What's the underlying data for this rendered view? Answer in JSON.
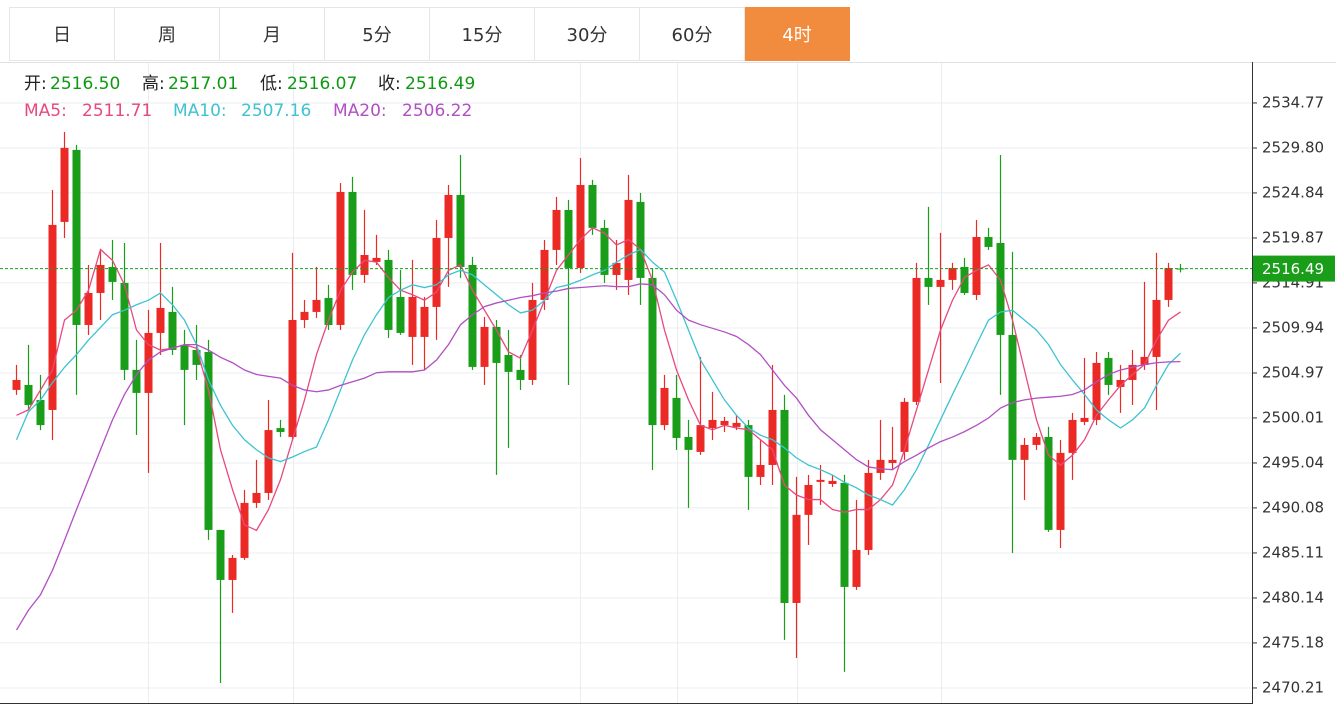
{
  "tabs": {
    "items": [
      "日",
      "周",
      "月",
      "5分",
      "15分",
      "30分",
      "60分",
      "4时"
    ],
    "active": 7
  },
  "chart_data": {
    "type": "candlestick",
    "ohlc_header": [
      {
        "label": "开:",
        "value": "2516.50"
      },
      {
        "label": "高:",
        "value": "2517.01"
      },
      {
        "label": "低:",
        "value": "2516.07"
      },
      {
        "label": "收:",
        "value": "2516.49"
      }
    ],
    "up_color": "#eb2a25",
    "down_color": "#1a9e1a",
    "candles": {
      "open": [
        2503.1,
        2503.65,
        2501.99,
        2500.89,
        2521.64,
        2529.59,
        2510.27,
        2513.8,
        2516.67,
        2514.91,
        2505.31,
        2502.77,
        2509.39,
        2511.71,
        2508.07,
        2507.51,
        2507.29,
        2487.65,
        2482.13,
        2484.56,
        2490.63,
        2491.73,
        2498.89,
        2497.91,
        2510.82,
        2511.71,
        2513.25,
        2510.27,
        2524.95,
        2515.79,
        2517.23,
        2517.45,
        2513.36,
        2508.95,
        2508.95,
        2512.26,
        2519.87,
        2524.62,
        2516.89,
        2505.64,
        2510.05,
        2506.96,
        2505.31,
        2504.2,
        2513.03,
        2518.55,
        2522.96,
        2516.56,
        2525.72,
        2520.98,
        2515.79,
        2515.24,
        2523.85,
        2515.46,
        2499.22,
        2502.22,
        2497.91,
        2496.26,
        2498.89,
        2499.22,
        2499.02,
        2499.22,
        2493.5,
        2494.82,
        2500.89,
        2479.59,
        2489.31,
        2492.95,
        2492.72,
        2492.84,
        2481.36,
        2485.44,
        2493.94,
        2495.04,
        2496.26,
        2501.78,
        2515.46,
        2514.47,
        2515.24,
        2516.67,
        2513.58,
        2519.98,
        2519.32,
        2509.17,
        2495.38,
        2497.03,
        2497.91,
        2487.65,
        2496.15,
        2499.57,
        2499.79,
        2506.63,
        2503.43,
        2504.2,
        2505.86,
        2506.74,
        2513.03,
        2516.5
      ],
      "high": [
        2505.86,
        2508.07,
        2504.76,
        2525.17,
        2531.57,
        2530.14,
        2516.89,
        2518.55,
        2519.65,
        2519.32,
        2508.62,
        2511.93,
        2519.32,
        2514.47,
        2509.72,
        2510.27,
        2508.62,
        2487.65,
        2484.89,
        2492.06,
        2495.38,
        2501.99,
        2499.79,
        2518.22,
        2513.03,
        2516.67,
        2514.69,
        2525.94,
        2526.61,
        2522.96,
        2520.21,
        2518.55,
        2516.34,
        2517.45,
        2513.36,
        2521.86,
        2525.72,
        2529.03,
        2517.78,
        2511.16,
        2510.82,
        2509.72,
        2506.96,
        2514.91,
        2519.65,
        2524.4,
        2524.07,
        2528.7,
        2526.28,
        2521.86,
        2519.65,
        2526.83,
        2524.84,
        2516.56,
        2504.76,
        2504.76,
        2499.79,
        2506.74,
        2502.88,
        2500.12,
        2500.34,
        2499.79,
        2497.58,
        2505.86,
        2502.55,
        2493.5,
        2493.72,
        2494.82,
        2493.72,
        2493.72,
        2490.96,
        2495.38,
        2499.79,
        2499.02,
        2502.22,
        2517.12,
        2523.3,
        2520.43,
        2517.12,
        2517.67,
        2521.86,
        2520.98,
        2529.03,
        2518.33,
        2497.8,
        2498.35,
        2499.02,
        2497.58,
        2500.56,
        2506.63,
        2507.29,
        2507.29,
        2505.86,
        2507.51,
        2515.02,
        2518.22,
        2517.12,
        2517.01
      ],
      "low": [
        2502.55,
        2500.89,
        2498.67,
        2497.58,
        2519.87,
        2502.55,
        2509.17,
        2510.82,
        2513.03,
        2504.2,
        2498.13,
        2493.94,
        2506.96,
        2506.96,
        2499.22,
        2504.2,
        2486.55,
        2470.76,
        2478.49,
        2484.34,
        2490.08,
        2490.96,
        2497.91,
        2497.58,
        2509.94,
        2511.05,
        2509.72,
        2509.72,
        2514.14,
        2514.91,
        2516.89,
        2508.84,
        2509.17,
        2505.86,
        2505.31,
        2508.62,
        2514.47,
        2515.46,
        2505.31,
        2503.65,
        2493.72,
        2496.7,
        2503.1,
        2503.65,
        2511.93,
        2516.89,
        2503.65,
        2516.01,
        2520.21,
        2514.91,
        2514.14,
        2513.58,
        2512.48,
        2494.27,
        2498.67,
        2496.48,
        2490.08,
        2495.93,
        2497.58,
        2498.46,
        2498.67,
        2489.86,
        2492.61,
        2492.61,
        2475.51,
        2473.52,
        2485.99,
        2490.41,
        2492.39,
        2471.98,
        2481.03,
        2484.89,
        2493.17,
        2494.27,
        2495.38,
        2501.44,
        2512.48,
        2503.87,
        2514.14,
        2513.58,
        2513.03,
        2518.55,
        2502.55,
        2485.11,
        2490.96,
        2496.48,
        2487.43,
        2485.66,
        2493.17,
        2499.22,
        2499.22,
        2502.55,
        2500.56,
        2501.44,
        2505.31,
        2500.89,
        2512.26,
        2516.07
      ],
      "close": [
        2504.2,
        2501.44,
        2499.22,
        2521.31,
        2529.81,
        2510.27,
        2513.8,
        2516.89,
        2515.02,
        2505.31,
        2502.77,
        2509.39,
        2512.15,
        2507.51,
        2505.31,
        2505.86,
        2487.65,
        2482.13,
        2484.56,
        2490.63,
        2491.73,
        2498.67,
        2498.46,
        2510.82,
        2511.71,
        2513.03,
        2510.27,
        2524.95,
        2515.79,
        2517.99,
        2517.67,
        2509.72,
        2509.39,
        2513.36,
        2512.26,
        2519.87,
        2524.62,
        2516.67,
        2505.64,
        2510.05,
        2506.08,
        2505.09,
        2504.2,
        2513.03,
        2518.55,
        2522.96,
        2516.56,
        2525.72,
        2520.98,
        2515.79,
        2517.12,
        2524.07,
        2515.46,
        2499.22,
        2503.32,
        2497.8,
        2496.48,
        2499.22,
        2499.79,
        2499.68,
        2499.46,
        2493.5,
        2494.82,
        2500.89,
        2479.59,
        2489.31,
        2492.61,
        2493.17,
        2493.06,
        2481.36,
        2485.44,
        2493.94,
        2495.38,
        2495.38,
        2501.78,
        2515.46,
        2514.47,
        2515.24,
        2516.56,
        2513.8,
        2519.98,
        2518.88,
        2509.17,
        2495.38,
        2497.03,
        2497.91,
        2487.65,
        2496.15,
        2499.79,
        2500.01,
        2506.08,
        2503.65,
        2504.2,
        2505.86,
        2506.74,
        2513.03,
        2516.56,
        2516.49
      ]
    },
    "series": [
      {
        "name": "MA5:",
        "latest": "2511.71",
        "color": "#e8497d",
        "values": [
          2500.3,
          2500.9,
          2503.1,
          2505.3,
          2510.8,
          2511.9,
          2514.1,
          2518.6,
          2517.4,
          2514.7,
          2509.7,
          2508.1,
          2507.5,
          2507.7,
          2508.1,
          2507.7,
          2503.1,
          2496.5,
          2492.1,
          2488.2,
          2487.6,
          2489.9,
          2493.2,
          2497.6,
          2502.0,
          2507.0,
          2510.8,
          2514.1,
          2516.1,
          2517.4,
          2517.2,
          2515.5,
          2514.1,
          2513.6,
          2513.0,
          2513.9,
          2516.3,
          2516.9,
          2514.1,
          2511.9,
          2509.7,
          2507.3,
          2506.6,
          2509.7,
          2513.0,
          2516.3,
          2518.0,
          2519.7,
          2521.0,
          2520.4,
          2519.1,
          2519.7,
          2518.6,
          2515.2,
          2509.7,
          2505.3,
          2502.0,
          2499.2,
          2498.7,
          2499.2,
          2498.9,
          2498.7,
          2497.6,
          2496.5,
          2492.6,
          2491.5,
          2491.0,
          2491.0,
          2489.9,
          2489.6,
          2489.9,
          2489.9,
          2491.0,
          2492.6,
          2496.5,
          2500.9,
          2505.3,
          2509.7,
          2513.0,
          2515.5,
          2516.3,
          2516.9,
          2515.2,
          2510.8,
          2505.3,
          2499.8,
          2495.9,
          2494.8,
          2495.9,
          2497.6,
          2500.3,
          2502.0,
          2503.6,
          2504.8,
          2505.9,
          2508.6,
          2510.8,
          2511.71
        ]
      },
      {
        "name": "MA10:",
        "latest": "2507.16",
        "color": "#3fc2d2",
        "values": [
          2497.6,
          2500.7,
          2502.0,
          2503.9,
          2505.6,
          2507.0,
          2508.6,
          2510.0,
          2511.4,
          2511.9,
          2512.5,
          2513.0,
          2513.8,
          2512.5,
          2510.8,
          2508.1,
          2504.2,
          2501.4,
          2499.2,
          2497.6,
          2496.5,
          2495.6,
          2495.2,
          2495.7,
          2496.3,
          2496.8,
          2499.8,
          2503.1,
          2506.4,
          2509.2,
          2511.4,
          2513.3,
          2514.1,
          2514.7,
          2514.4,
          2514.7,
          2515.8,
          2516.3,
          2515.8,
          2514.7,
          2513.6,
          2512.5,
          2511.6,
          2511.9,
          2513.0,
          2514.4,
          2514.7,
          2515.2,
          2515.8,
          2516.3,
          2517.2,
          2518.0,
          2518.6,
          2517.2,
          2516.1,
          2513.0,
          2509.7,
          2506.4,
          2504.2,
          2502.0,
          2500.3,
          2498.9,
          2498.1,
          2497.6,
          2496.7,
          2495.6,
          2494.8,
          2494.3,
          2493.7,
          2492.9,
          2492.3,
          2491.5,
          2491.0,
          2490.4,
          2492.1,
          2494.3,
          2497.0,
          2499.8,
          2502.6,
          2505.3,
          2508.1,
          2510.8,
          2511.7,
          2511.9,
          2510.8,
          2509.7,
          2508.1,
          2505.9,
          2504.2,
          2502.6,
          2500.9,
          2499.8,
          2498.9,
          2499.8,
          2501.1,
          2503.6,
          2505.9,
          2507.16
        ]
      },
      {
        "name": "MA20:",
        "latest": "2506.22",
        "color": "#b24fc3",
        "values": [
          2476.6,
          2478.8,
          2480.5,
          2483.2,
          2486.5,
          2489.9,
          2493.2,
          2496.5,
          2499.8,
          2502.6,
          2504.8,
          2506.4,
          2507.3,
          2507.7,
          2508.1,
          2508.1,
          2507.5,
          2506.7,
          2506.1,
          2505.3,
          2504.8,
          2504.6,
          2504.4,
          2503.6,
          2503.1,
          2502.9,
          2503.1,
          2503.6,
          2504.0,
          2504.4,
          2505.0,
          2505.1,
          2505.1,
          2505.1,
          2505.3,
          2506.4,
          2508.1,
          2510.3,
          2511.4,
          2512.3,
          2512.7,
          2513.0,
          2513.3,
          2513.5,
          2513.8,
          2514.0,
          2514.3,
          2514.4,
          2514.5,
          2514.6,
          2514.5,
          2514.5,
          2514.8,
          2514.7,
          2513.6,
          2511.9,
          2510.8,
          2510.3,
          2509.9,
          2509.5,
          2509.0,
          2508.1,
          2507.0,
          2505.3,
          2503.6,
          2502.2,
          2500.3,
          2498.7,
          2497.6,
          2496.5,
          2495.4,
          2494.6,
          2494.4,
          2494.3,
          2495.2,
          2495.9,
          2496.7,
          2497.4,
          2497.9,
          2498.5,
          2499.2,
          2500.0,
          2501.1,
          2501.7,
          2502.0,
          2502.2,
          2502.3,
          2502.4,
          2502.6,
          2503.1,
          2504.0,
          2504.8,
          2505.3,
          2505.6,
          2505.9,
          2506.1,
          2506.2,
          2506.22
        ]
      }
    ],
    "ylim": [
      2468.55,
      2539.29
    ],
    "yticks": [
      2470.21,
      2475.18,
      2480.14,
      2485.11,
      2490.08,
      2495.04,
      2500.01,
      2504.97,
      2509.94,
      2514.91,
      2519.87,
      2524.84,
      {
        "value": 2529.8,
        "label": "2529.80"
      },
      2534.77
    ],
    "grid": true,
    "last_price": {
      "value": 2516.49,
      "label": "2516.49"
    }
  }
}
